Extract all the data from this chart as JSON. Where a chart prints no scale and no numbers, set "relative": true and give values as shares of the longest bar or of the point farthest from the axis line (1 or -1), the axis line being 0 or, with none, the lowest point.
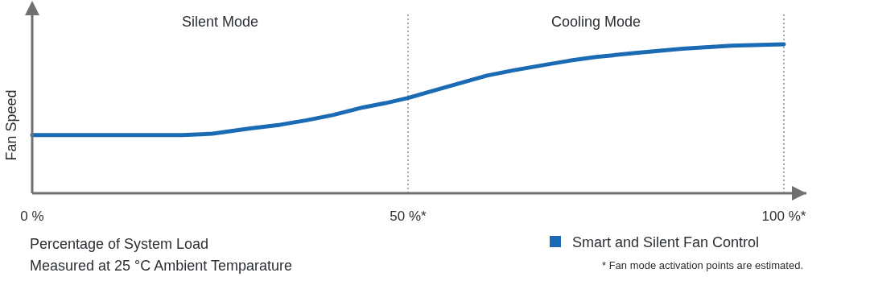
{
  "chart_data": {
    "type": "line",
    "relative": true,
    "xlabel": "Percentage of System Load",
    "ylabel": "Fan Speed",
    "x": [
      0,
      20,
      24,
      29,
      33,
      36.5,
      40,
      44,
      47,
      50,
      53,
      56.5,
      60.5,
      64,
      68,
      71.5,
      75,
      80,
      86.5,
      93,
      100
    ],
    "series": [
      {
        "name": "Smart and Silent Fan Control",
        "color": "#1a6ab4",
        "values": [
          0.39,
          0.39,
          0.4,
          0.435,
          0.46,
          0.49,
          0.525,
          0.576,
          0.605,
          0.64,
          0.683,
          0.733,
          0.79,
          0.825,
          0.86,
          0.89,
          0.915,
          0.94,
          0.97,
          0.99,
          1
        ]
      }
    ],
    "xlim": [
      0,
      103
    ],
    "xticks": [
      {
        "value": 0,
        "label": "0 %"
      },
      {
        "value": 50,
        "label": "50 %*"
      },
      {
        "value": 100,
        "label": "100 %*"
      }
    ],
    "ref_lines": [
      {
        "axis": "x",
        "value": 50,
        "color": "#777777",
        "line_style": "dotted"
      },
      {
        "axis": "x",
        "value": 100,
        "color": "#777777",
        "line_style": "dotted"
      }
    ],
    "annotations": [
      "Measured at 25 °C Ambient Temparature",
      "* Fan mode activation points are estimated.",
      "Silent Mode",
      "Cooling Mode"
    ],
    "legend": "bottom right",
    "grid": false,
    "marker": "none",
    "line_style": "solid"
  }
}
